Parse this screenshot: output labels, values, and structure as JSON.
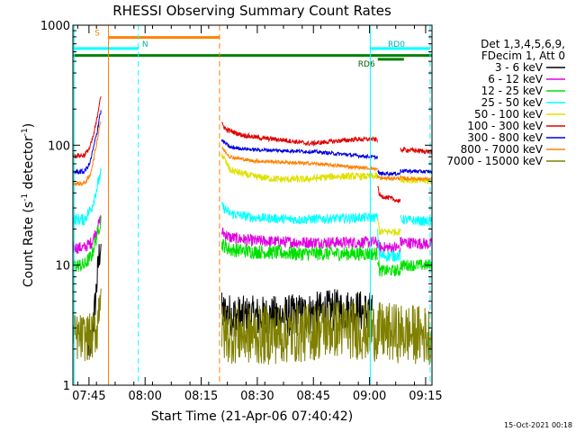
{
  "chart_data": {
    "type": "line",
    "title": "RHESSI Observing Summary Count Rates",
    "xlabel": "Start Time (21-Apr-06 07:40:42)",
    "ylabel_prefix": "Count Rate (s",
    "ylabel_exp1": "-1",
    "ylabel_mid": " detector",
    "ylabel_exp2": "-1",
    "ylabel_suffix": ")",
    "yscale": "log",
    "ylim": [
      1,
      1000
    ],
    "xlim": [
      0,
      96
    ],
    "y_ticks": [
      {
        "value": 1000,
        "label": "1000"
      },
      {
        "value": 100,
        "label": "100"
      },
      {
        "value": 10,
        "label": "10"
      },
      {
        "value": 1,
        "label": "1"
      }
    ],
    "x_ticks": [
      {
        "t": 4.3,
        "label": "07:45"
      },
      {
        "t": 19.3,
        "label": "08:00"
      },
      {
        "t": 34.3,
        "label": "08:15"
      },
      {
        "t": 49.3,
        "label": "08:30"
      },
      {
        "t": 64.3,
        "label": "08:45"
      },
      {
        "t": 79.3,
        "label": "09:00"
      },
      {
        "t": 94.3,
        "label": "09:15"
      }
    ],
    "legend_header": [
      "Det 1,3,4,5,6,9,",
      "FDecim 1, Att 0"
    ],
    "series": [
      {
        "name": "3 - 6 keV",
        "color": "#000000",
        "segments": [
          {
            "t": [
              4.0,
              5.0,
              6.0,
              7.0,
              7.5
            ],
            "v": [
              2.0,
              2.3,
              5.0,
              12.0,
              15.0
            ],
            "noise": 0.15
          },
          {
            "t": [
              39.8,
              45.0,
              55.0,
              65.0,
              70.0,
              75.0,
              80.0
            ],
            "v": [
              4.0,
              3.7,
              3.7,
              4.0,
              4.2,
              4.2,
              4.0
            ],
            "noise": 0.18
          }
        ]
      },
      {
        "name": "6 - 12 keV",
        "color": "#e000e0",
        "segments": [
          {
            "t": [
              0.0,
              3.0,
              5.0,
              6.5,
              7.5
            ],
            "v": [
              14.0,
              14.0,
              15.5,
              20.0,
              25.0
            ],
            "noise": 0.05
          },
          {
            "t": [
              39.8,
              42.0,
              48.0,
              60.0,
              70.0,
              80.0,
              81.5
            ],
            "v": [
              19.0,
              17.0,
              16.0,
              15.5,
              15.5,
              15.5,
              15.5
            ],
            "noise": 0.05
          },
          {
            "t": [
              81.5,
              82.0,
              87.0,
              87.5
            ],
            "v": [
              15.0,
              14.0,
              14.0,
              14.0
            ],
            "noise": 0.05
          },
          {
            "t": [
              87.5,
              88.0,
              96.0
            ],
            "v": [
              15.5,
              15.5,
              15.0
            ],
            "noise": 0.05
          }
        ]
      },
      {
        "name": "12 - 25 keV",
        "color": "#00e000",
        "segments": [
          {
            "t": [
              0.0,
              3.0,
              5.0,
              6.5,
              7.5
            ],
            "v": [
              10.0,
              10.0,
              12.0,
              18.0,
              24.0
            ],
            "noise": 0.06
          },
          {
            "t": [
              39.8,
              42.0,
              48.0,
              60.0,
              70.0,
              80.0,
              81.5
            ],
            "v": [
              15.0,
              13.5,
              13.0,
              12.5,
              12.5,
              12.5,
              12.5
            ],
            "noise": 0.06
          },
          {
            "t": [
              81.5,
              82.0,
              87.0,
              87.5
            ],
            "v": [
              11.5,
              9.0,
              9.0,
              9.0
            ],
            "noise": 0.05
          },
          {
            "t": [
              87.5,
              88.0,
              96.0
            ],
            "v": [
              10.0,
              10.0,
              10.0
            ],
            "noise": 0.05
          }
        ]
      },
      {
        "name": "25 - 50 keV",
        "color": "#00ffff",
        "segments": [
          {
            "t": [
              0.0,
              3.0,
              5.0,
              6.5,
              7.5
            ],
            "v": [
              24.0,
              24.0,
              30.0,
              45.0,
              60.0
            ],
            "noise": 0.05
          },
          {
            "t": [
              39.8,
              42.0,
              48.0,
              60.0,
              70.0,
              80.0,
              81.5
            ],
            "v": [
              31.0,
              27.0,
              25.0,
              24.0,
              24.5,
              25.0,
              25.0
            ],
            "noise": 0.04
          },
          {
            "t": [
              81.5,
              82.0,
              87.0,
              87.5
            ],
            "v": [
              18.0,
              12.0,
              12.0,
              12.0
            ],
            "noise": 0.05
          },
          {
            "t": [
              87.5,
              88.0,
              96.0
            ],
            "v": [
              24.0,
              24.0,
              23.0
            ],
            "noise": 0.04
          }
        ]
      },
      {
        "name": "50 - 100 keV",
        "color": "#e0e000",
        "segments": [
          {
            "t": [
              39.8,
              42.0,
              48.0,
              55.0,
              62.0,
              70.0,
              80.0,
              81.5
            ],
            "v": [
              85.0,
              62.0,
              55.0,
              52.0,
              52.0,
              55.0,
              55.0,
              55.0
            ],
            "noise": 0.03
          },
          {
            "t": [
              81.5,
              82.0,
              87.0,
              87.5
            ],
            "v": [
              24.0,
              19.0,
              19.0,
              19.0
            ],
            "noise": 0.03
          },
          {
            "t": [
              87.5,
              88.0,
              96.0
            ],
            "v": [
              53.0,
              52.0,
              50.0
            ],
            "noise": 0.03
          }
        ]
      },
      {
        "name": "100 - 300 keV",
        "color": "#e00000",
        "segments": [
          {
            "t": [
              0.0,
              3.0,
              4.5,
              5.5,
              6.5,
              7.2,
              7.5
            ],
            "v": [
              82.0,
              82.0,
              95.0,
              120.0,
              170.0,
              240.0,
              260.0
            ],
            "noise": 0.02
          },
          {
            "t": [
              39.8,
              41.0,
              45.0,
              50.0,
              57.0,
              63.0,
              70.0,
              76.0,
              80.0,
              81.5
            ],
            "v": [
              150.0,
              135.0,
              122.0,
              115.0,
              110.0,
              103.0,
              108.0,
              112.0,
              112.0,
              111.0
            ],
            "noise": 0.02
          },
          {
            "t": [
              81.5,
              82.0,
              85.0,
              87.5
            ],
            "v": [
              45.0,
              38.0,
              36.0,
              34.0
            ],
            "noise": 0.02
          },
          {
            "t": [
              87.5,
              88.0,
              96.0
            ],
            "v": [
              90.0,
              92.0,
              88.0
            ],
            "noise": 0.02
          }
        ]
      },
      {
        "name": "300 - 800 keV",
        "color": "#0000e0",
        "segments": [
          {
            "t": [
              0.0,
              3.0,
              4.5,
              5.5,
              6.5,
              7.2,
              7.5
            ],
            "v": [
              60.0,
              60.0,
              70.0,
              95.0,
              130.0,
              180.0,
              190.0
            ],
            "noise": 0.02
          },
          {
            "t": [
              39.8,
              42.0,
              48.0,
              57.0,
              65.0,
              72.0,
              80.0,
              81.5
            ],
            "v": [
              110.0,
              96.0,
              92.0,
              90.0,
              88.0,
              84.0,
              80.0,
              79.0
            ],
            "noise": 0.015
          },
          {
            "t": [
              81.5,
              82.0,
              87.0,
              87.5
            ],
            "v": [
              60.0,
              58.0,
              58.0,
              58.0
            ],
            "noise": 0.015
          },
          {
            "t": [
              87.5,
              88.0,
              96.0
            ],
            "v": [
              62.0,
              61.0,
              60.0
            ],
            "noise": 0.015
          }
        ]
      },
      {
        "name": "800 - 7000 keV",
        "color": "#ff8000",
        "segments": [
          {
            "t": [
              0.0,
              3.0,
              4.5,
              5.5,
              6.5,
              7.2,
              7.5
            ],
            "v": [
              48.0,
              48.0,
              55.0,
              75.0,
              110.0,
              150.0,
              160.0
            ],
            "noise": 0.02
          },
          {
            "t": [
              39.8,
              42.0,
              48.0,
              57.0,
              65.0,
              72.0,
              80.0,
              81.5
            ],
            "v": [
              95.0,
              80.0,
              74.0,
              72.0,
              70.0,
              67.0,
              64.0,
              63.0
            ],
            "noise": 0.015
          },
          {
            "t": [
              81.5,
              82.0,
              87.0,
              87.5
            ],
            "v": [
              55.0,
              53.0,
              53.0,
              53.0
            ],
            "noise": 0.015
          },
          {
            "t": [
              87.5,
              88.0,
              96.0
            ],
            "v": [
              54.0,
              53.0,
              52.0
            ],
            "noise": 0.015
          }
        ]
      },
      {
        "name": "7000 - 15000 keV",
        "color": "#808000",
        "segments": [
          {
            "t": [
              0.0,
              5.0,
              6.5,
              7.5
            ],
            "v": [
              2.5,
              2.5,
              3.0,
              7.0
            ],
            "noise": 0.2
          },
          {
            "t": [
              39.8,
              50.0,
              60.0,
              70.0,
              80.0,
              96.0
            ],
            "v": [
              2.7,
              2.6,
              2.7,
              3.0,
              2.8,
              2.6
            ],
            "noise": 0.25
          }
        ]
      }
    ],
    "vertical_lines": [
      {
        "t": 0.3,
        "color": "#00ffff",
        "style": "solid"
      },
      {
        "t": 9.5,
        "color": "#ff8000",
        "style": "solid"
      },
      {
        "t": 17.5,
        "color": "#00ffff",
        "style": "dashed"
      },
      {
        "t": 39.2,
        "color": "#ff8000",
        "style": "dashed"
      },
      {
        "t": 79.5,
        "color": "#00ffff",
        "style": "solid"
      },
      {
        "t": 95.5,
        "color": "#00ffff",
        "style": "dashed"
      }
    ],
    "status_bars": [
      {
        "t_start": 9.5,
        "t_end": 39.2,
        "value": 790,
        "color": "#ff8000",
        "label": "S",
        "label_t": 6.5
      },
      {
        "t_start": 0.3,
        "t_end": 17.5,
        "value": 640,
        "color": "#00ffff",
        "label": "N",
        "label_t": 19.3
      },
      {
        "t_start": 0.0,
        "t_end": 96.0,
        "value": 560,
        "color": "#008000",
        "label": "",
        "label_t": 0
      },
      {
        "t_start": 79.5,
        "t_end": 95.5,
        "value": 640,
        "color": "#00ffff",
        "label": "RD0",
        "label_t": 86.5
      },
      {
        "t_start": 81.5,
        "t_end": 88.5,
        "value": 520,
        "color": "#008000",
        "label": "RD6",
        "label_t": 78.5
      }
    ],
    "footer_timestamp": "15-Oct-2021 00:18"
  }
}
